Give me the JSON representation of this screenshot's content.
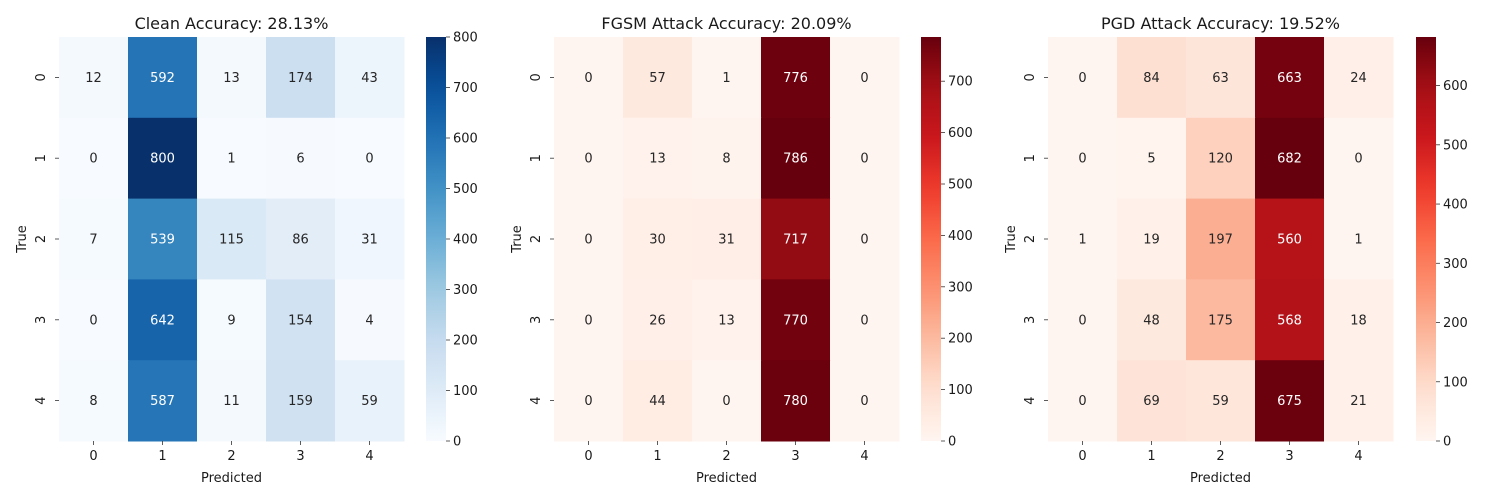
{
  "chart_data": [
    {
      "type": "heatmap",
      "title": "Clean Accuracy: 28.13%",
      "colormap": "Blues",
      "xlabel": "Predicted",
      "ylabel": "True",
      "x_categories": [
        "0",
        "1",
        "2",
        "3",
        "4"
      ],
      "y_categories": [
        "0",
        "1",
        "2",
        "3",
        "4"
      ],
      "values": [
        [
          12,
          592,
          13,
          174,
          43
        ],
        [
          0,
          800,
          1,
          6,
          0
        ],
        [
          7,
          539,
          115,
          86,
          31
        ],
        [
          0,
          642,
          9,
          154,
          4
        ],
        [
          8,
          587,
          11,
          159,
          59
        ]
      ],
      "colorbar": {
        "vmin": 0,
        "vmax": 800,
        "ticks": [
          0,
          100,
          200,
          300,
          400,
          500,
          600,
          700,
          800
        ]
      }
    },
    {
      "type": "heatmap",
      "title": "FGSM Attack Accuracy: 20.09%",
      "colormap": "Reds",
      "xlabel": "Predicted",
      "ylabel": "True",
      "x_categories": [
        "0",
        "1",
        "2",
        "3",
        "4"
      ],
      "y_categories": [
        "0",
        "1",
        "2",
        "3",
        "4"
      ],
      "values": [
        [
          0,
          57,
          1,
          776,
          0
        ],
        [
          0,
          13,
          8,
          786,
          0
        ],
        [
          0,
          30,
          31,
          717,
          0
        ],
        [
          0,
          26,
          13,
          770,
          0
        ],
        [
          0,
          44,
          0,
          780,
          0
        ]
      ],
      "colorbar": {
        "vmin": 0,
        "vmax": 786,
        "ticks": [
          0,
          100,
          200,
          300,
          400,
          500,
          600,
          700
        ]
      }
    },
    {
      "type": "heatmap",
      "title": "PGD Attack Accuracy: 19.52%",
      "colormap": "Reds",
      "xlabel": "Predicted",
      "ylabel": "True",
      "x_categories": [
        "0",
        "1",
        "2",
        "3",
        "4"
      ],
      "y_categories": [
        "0",
        "1",
        "2",
        "3",
        "4"
      ],
      "values": [
        [
          0,
          84,
          63,
          663,
          24
        ],
        [
          0,
          5,
          120,
          682,
          0
        ],
        [
          1,
          19,
          197,
          560,
          1
        ],
        [
          0,
          48,
          175,
          568,
          18
        ],
        [
          0,
          69,
          59,
          675,
          21
        ]
      ],
      "colorbar": {
        "vmin": 0,
        "vmax": 682,
        "ticks": [
          0,
          100,
          200,
          300,
          400,
          500,
          600
        ]
      }
    }
  ]
}
